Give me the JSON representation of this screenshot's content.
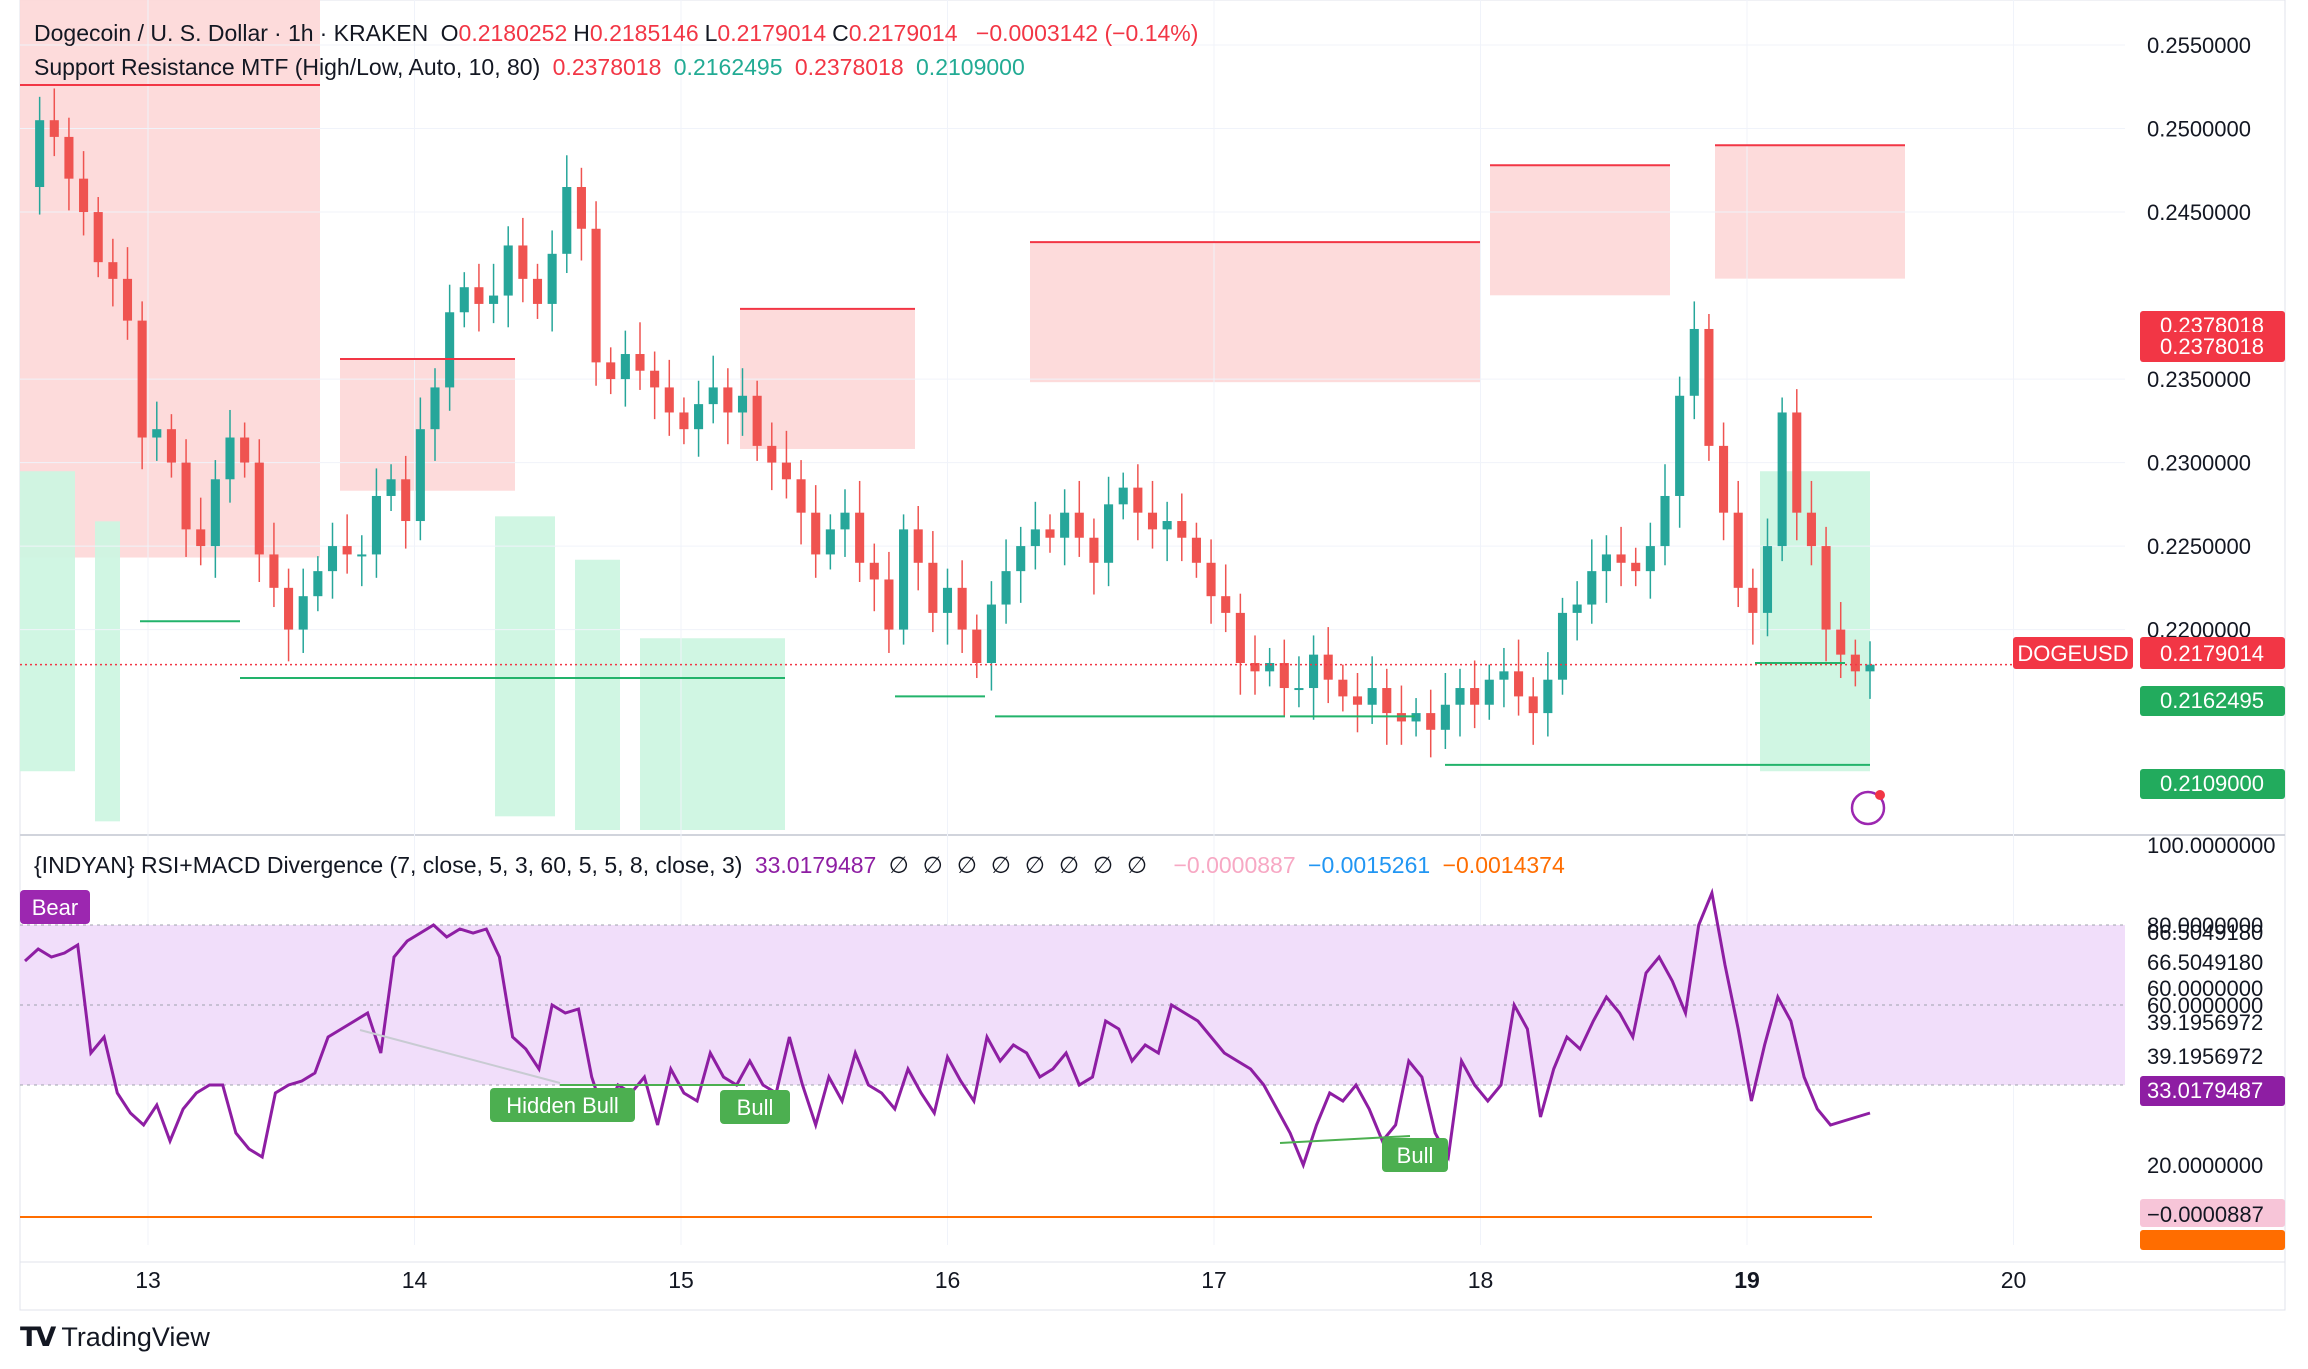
{
  "header": {
    "symbol": "Dogecoin / U. S. Dollar",
    "interval": "1h",
    "exchange": "KRAKEN",
    "ohlc": [
      {
        "k": "O",
        "v": "0.2180252"
      },
      {
        "k": "H",
        "v": "0.2185146"
      },
      {
        "k": "L",
        "v": "0.2179014"
      },
      {
        "k": "C",
        "v": "0.2179014"
      }
    ],
    "change": "−0.0003142 (−0.14%)"
  },
  "indicator1": {
    "name": "Support Resistance MTF (High/Low, Auto, 10, 80)",
    "values": [
      "0.2378018",
      "0.2162495",
      "0.2378018",
      "0.2109000"
    ]
  },
  "indicator2": {
    "name": "{INDYAN} RSI+MACD Divergence (7, close, 5, 3, 60, 5, 5, 8, close, 3)",
    "rsi": "33.0179487",
    "empties": [
      "∅",
      "∅",
      "∅",
      "∅",
      "∅",
      "∅",
      "∅",
      "∅"
    ],
    "macd_values": [
      "−0.0000887",
      "−0.0015261",
      "−0.0014374"
    ]
  },
  "colors": {
    "up": "#26a69a",
    "down": "#ef5350",
    "res_zone": "#fdd7d7",
    "sup_zone": "#cdf5e1",
    "res_line": "#f23645",
    "sup_line": "#22b36b",
    "rsi": "#8e1ea3",
    "band": "#f1defa",
    "bull": "#4caf50",
    "bear": "#9c27b0",
    "macd": "#ff6d00"
  },
  "chart_data": [
    {
      "type": "candlestick",
      "title": "Dogecoin / U. S. Dollar · 1h · KRAKEN",
      "ylim": [
        0.208,
        0.2565
      ],
      "y_ticks": [
        "0.2550000",
        "0.2500000",
        "0.2450000",
        "0.2350000",
        "0.2300000",
        "0.2250000",
        "0.2200000"
      ],
      "x_ticks": [
        "13",
        "14",
        "15",
        "16",
        "17",
        "18",
        "19",
        "20"
      ],
      "last_price": {
        "label": "DOGEUSD",
        "value": "0.2179014"
      },
      "level_tags": [
        {
          "value": "0.2378018",
          "kind": "resistance"
        },
        {
          "value": "0.2378018",
          "kind": "resistance"
        },
        {
          "value": "0.2162495",
          "kind": "support"
        },
        {
          "value": "0.2109000",
          "kind": "support"
        }
      ],
      "price_path": [
        0.2465,
        0.2505,
        0.2495,
        0.247,
        0.245,
        0.242,
        0.241,
        0.2385,
        0.2315,
        0.232,
        0.23,
        0.226,
        0.225,
        0.229,
        0.2315,
        0.23,
        0.2245,
        0.2225,
        0.22,
        0.222,
        0.2235,
        0.225,
        0.2245,
        0.2245,
        0.228,
        0.229,
        0.2265,
        0.232,
        0.2345,
        0.239,
        0.2405,
        0.2395,
        0.24,
        0.243,
        0.241,
        0.2395,
        0.2425,
        0.2465,
        0.244,
        0.236,
        0.235,
        0.2365,
        0.2355,
        0.2345,
        0.233,
        0.232,
        0.2335,
        0.2345,
        0.233,
        0.234,
        0.231,
        0.23,
        0.229,
        0.227,
        0.2245,
        0.226,
        0.227,
        0.224,
        0.223,
        0.22,
        0.226,
        0.224,
        0.221,
        0.2225,
        0.22,
        0.218,
        0.2215,
        0.2235,
        0.225,
        0.226,
        0.2255,
        0.227,
        0.2255,
        0.224,
        0.2275,
        0.2285,
        0.227,
        0.226,
        0.2265,
        0.2255,
        0.224,
        0.222,
        0.221,
        0.218,
        0.2175,
        0.218,
        0.2165,
        0.2165,
        0.2185,
        0.217,
        0.216,
        0.2155,
        0.2165,
        0.215,
        0.2145,
        0.215,
        0.214,
        0.2155,
        0.2165,
        0.2155,
        0.217,
        0.2175,
        0.216,
        0.215,
        0.217,
        0.221,
        0.2215,
        0.2235,
        0.2245,
        0.224,
        0.2235,
        0.225,
        0.228,
        0.234,
        0.238,
        0.231,
        0.227,
        0.2225,
        0.221,
        0.225,
        0.233,
        0.227,
        0.225,
        0.22,
        0.2185,
        0.2175,
        0.2179
      ],
      "resistance_segments": [
        [
          0.2315,
          0.233
        ],
        [
          0.2355,
          0.2362
        ],
        [
          0.238,
          0.2392
        ],
        [
          0.242,
          0.2432
        ],
        [
          0.2472,
          0.2478
        ],
        [
          0.2482,
          0.249
        ]
      ],
      "support_segments": [
        [
          0.2205,
          0.2218
        ],
        [
          0.2175,
          0.2195
        ],
        [
          0.2178,
          0.219
        ],
        [
          0.2152,
          0.2168
        ],
        [
          0.2105,
          0.2118
        ]
      ]
    },
    {
      "type": "line",
      "title": "{INDYAN} RSI+MACD Divergence (7, close, 5, 3, 60, 5, 5, 8, close, 3)",
      "ylim": [
        0,
        100
      ],
      "y_ticks": [
        "100.0000000",
        "80.0000000",
        "60.0000000",
        "20.0000000"
      ],
      "band": [
        40,
        60
      ],
      "level_tags": [
        "66.5049180",
        "66.5049180",
        "60.0000000",
        "39.1956972",
        "39.1956972",
        "33.0179487"
      ],
      "macd_tags": [
        "−0.0000887",
        "−0.0014374"
      ],
      "series": [
        {
          "values": [
            71,
            74,
            72,
            73,
            75,
            48,
            52,
            38,
            33,
            30,
            35,
            26,
            34,
            38,
            40,
            40,
            28,
            24,
            22,
            38,
            40,
            41,
            43,
            52,
            54,
            56,
            58,
            48,
            72,
            76,
            78,
            80,
            77,
            79,
            78,
            79,
            72,
            52,
            49,
            44,
            60,
            58,
            59,
            42,
            32,
            40,
            38,
            42,
            30,
            44,
            38,
            36,
            48,
            42,
            40,
            46,
            40,
            38,
            52,
            40,
            30,
            42,
            36,
            48,
            40,
            38,
            34,
            44,
            38,
            33,
            47,
            41,
            36,
            52,
            46,
            50,
            48,
            42,
            44,
            48,
            40,
            42,
            56,
            54,
            46,
            50,
            48,
            60,
            58,
            56,
            52,
            48,
            46,
            44,
            40,
            34,
            28,
            20,
            30,
            38,
            36,
            40,
            34,
            26,
            30,
            46,
            42,
            28,
            22,
            46,
            40,
            36,
            40,
            60,
            54,
            32,
            44,
            52,
            49,
            56,
            62,
            58,
            52,
            68,
            72,
            66,
            58,
            80,
            88,
            70,
            54,
            36,
            50,
            62,
            56,
            42,
            34,
            30,
            31,
            32,
            33
          ]
        }
      ],
      "divergence_labels": [
        "Bear",
        "Hidden Bull",
        "Bull",
        "Bull"
      ]
    }
  ],
  "footer": {
    "brand": "TradingView"
  }
}
